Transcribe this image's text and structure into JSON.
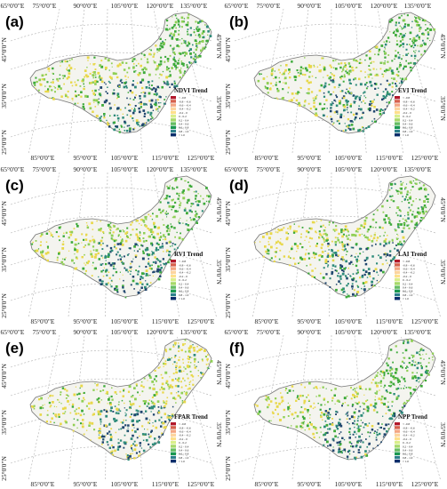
{
  "figure": {
    "top_lon_labels": [
      "65°0'0\"E",
      "75°0'0\"E",
      "90°0'0\"E",
      "105°0'0\"E",
      "120°0'0\"E",
      "135°0'0\"E"
    ],
    "bottom_lon_labels": [
      "85°0'0\"E",
      "95°0'0\"E",
      "105°0'0\"E",
      "115°0'0\"E",
      "125°0'0\"E"
    ],
    "left_lat_labels": [
      "45°0'0\"N",
      "35°0'0\"N",
      "25°0'0\"N"
    ],
    "right_lat_labels": [
      "45°0'0\"N",
      "35°0'0\"N"
    ],
    "legend_classes": [
      "< -0.8",
      "-0.8 - -0.6",
      "-0.6 - -0.4",
      "-0.4 - -0.2",
      "-0.2 - 0",
      "0 - 0.2",
      "0.2 - 0.4",
      "0.4 - 0.6",
      "0.6 - 0.8",
      "0.8 - 1.0",
      "> 1.0"
    ],
    "legend_colors": [
      "#b2182b",
      "#d6604d",
      "#f4a582",
      "#fdd49e",
      "#fee08b",
      "#d9ef8b",
      "#a6d96a",
      "#66bd63",
      "#1a9850",
      "#2c7f8a",
      "#0b2e6b"
    ],
    "colors": {
      "border": "#777777",
      "graticule": "#b0b0b0",
      "yellow": "#e8d84a",
      "green_light": "#8fcf55",
      "green": "#3daa3a",
      "teal": "#2e8b7a",
      "blue": "#20466e"
    }
  },
  "panels": [
    {
      "letter": "(a)",
      "legend_title": "NDVI Trend"
    },
    {
      "letter": "(b)",
      "legend_title": "EVI Trend"
    },
    {
      "letter": "(c)",
      "legend_title": "RVI Trend"
    },
    {
      "letter": "(d)",
      "legend_title": "LAI Trend"
    },
    {
      "letter": "(e)",
      "legend_title": "FPAR Trend"
    },
    {
      "letter": "(f)",
      "legend_title": "NPP Trend"
    }
  ]
}
